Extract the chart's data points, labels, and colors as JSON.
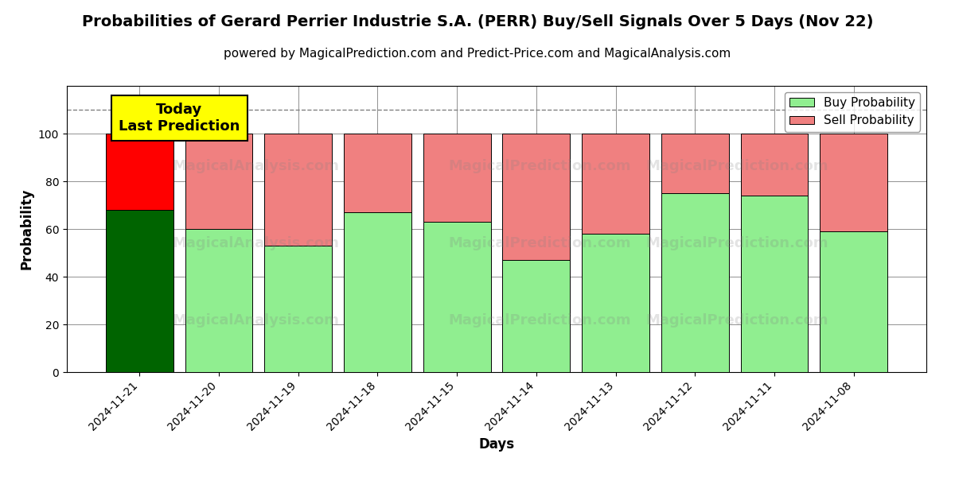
{
  "title": "Probabilities of Gerard Perrier Industrie S.A. (PERR) Buy/Sell Signals Over 5 Days (Nov 22)",
  "subtitle": "powered by MagicalPrediction.com and Predict-Price.com and MagicalAnalysis.com",
  "xlabel": "Days",
  "ylabel": "Probability",
  "dates": [
    "2024-11-21",
    "2024-11-20",
    "2024-11-19",
    "2024-11-18",
    "2024-11-15",
    "2024-11-14",
    "2024-11-13",
    "2024-11-12",
    "2024-11-11",
    "2024-11-08"
  ],
  "buy_probs": [
    68,
    60,
    53,
    67,
    63,
    47,
    58,
    75,
    74,
    59
  ],
  "sell_probs": [
    32,
    40,
    47,
    33,
    37,
    53,
    42,
    25,
    26,
    41
  ],
  "today_buy_color": "#006400",
  "today_sell_color": "#FF0000",
  "buy_color": "#90EE90",
  "sell_color": "#F08080",
  "today_annotation": "Today\nLast Prediction",
  "annotation_bg": "#FFFF00",
  "ylim": [
    0,
    120
  ],
  "dashed_line_y": 110,
  "bar_width": 0.85,
  "title_fontsize": 14,
  "subtitle_fontsize": 11,
  "axis_label_fontsize": 12,
  "tick_fontsize": 10,
  "legend_fontsize": 11
}
